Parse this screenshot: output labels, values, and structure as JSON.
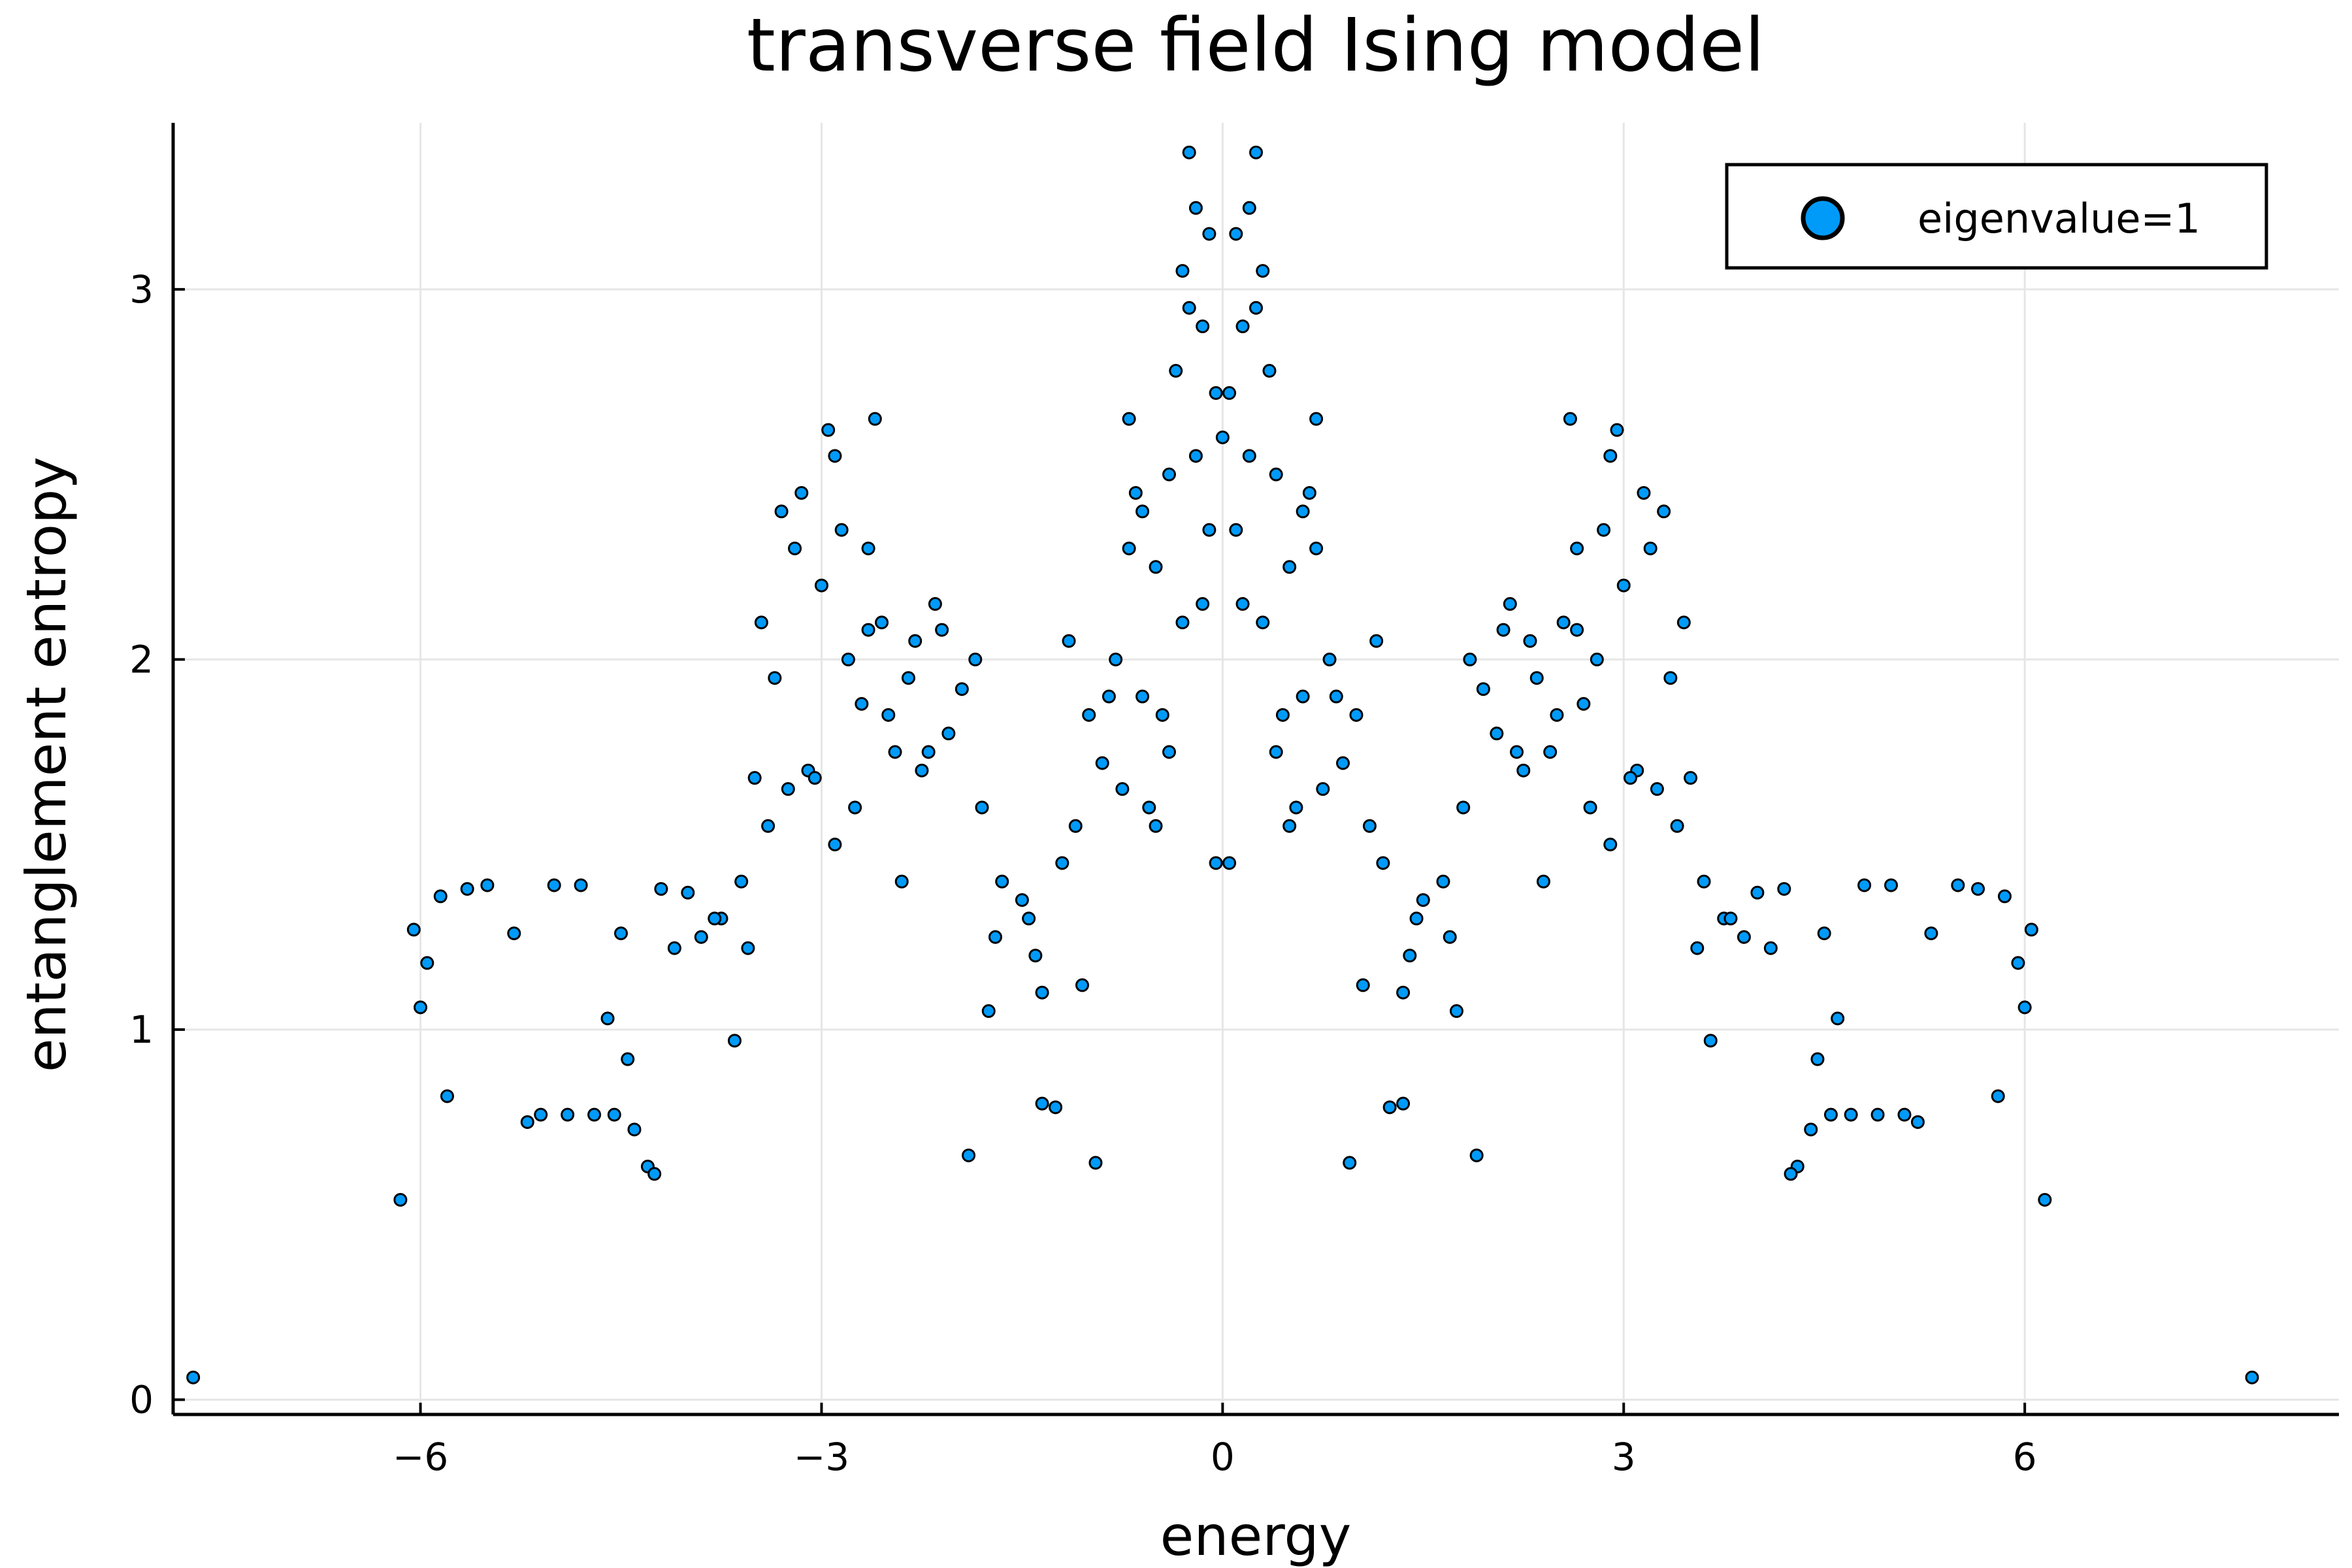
{
  "chart_data": {
    "type": "scatter",
    "title": "transverse field Ising model",
    "xlabel": "energy",
    "ylabel": "entanglement entropy",
    "xlim": [
      -7.85,
      8.35
    ],
    "ylim": [
      -0.04,
      3.45
    ],
    "xticks": [
      -6,
      -3,
      0,
      3,
      6
    ],
    "xtick_labels": [
      "−6",
      "−3",
      "0",
      "3",
      "6"
    ],
    "yticks": [
      0,
      1,
      2,
      3
    ],
    "ytick_labels": [
      "0",
      "1",
      "2",
      "3"
    ],
    "grid": true,
    "legend": "top-right",
    "colors": {
      "marker": "#009AF9",
      "marker_edge": "#000000",
      "grid": "#e6e6e6"
    },
    "series": [
      {
        "name": "eigenvalue=1",
        "x": [
          -7.7,
          7.7,
          -6.15,
          6.15,
          -6.05,
          6.05,
          -6.0,
          6.0,
          -5.95,
          5.95,
          -5.8,
          5.8,
          -5.2,
          5.2,
          -5.1,
          5.1,
          -4.9,
          4.9,
          -4.7,
          4.7,
          -4.55,
          4.55,
          -4.4,
          4.4,
          -4.3,
          4.3,
          -4.25,
          4.25,
          -4.2,
          4.2,
          -4.5,
          4.5,
          -4.6,
          4.6,
          -4.8,
          4.8,
          -5.0,
          5.0,
          -5.3,
          5.3,
          -5.5,
          5.5,
          -5.65,
          5.65,
          -5.85,
          5.85,
          -4.45,
          4.45,
          -1.9,
          1.9,
          -1.35,
          1.35,
          -1.25,
          1.25,
          -0.95,
          0.95,
          -3.5,
          3.5,
          -3.35,
          3.35,
          -3.2,
          3.2,
          -2.9,
          2.9,
          -2.6,
          2.6,
          -2.3,
          2.3,
          -3.4,
          3.4,
          -3.1,
          3.1,
          -2.7,
          2.7,
          -2.2,
          2.2,
          -1.8,
          1.8,
          -1.5,
          1.5,
          -1.2,
          1.2,
          -0.9,
          0.9,
          -0.6,
          0.6,
          -0.3,
          0.3,
          -0.1,
          0.1,
          -3.3,
          3.3,
          -3.0,
          3.0,
          -2.8,
          2.8,
          -2.5,
          2.5,
          -2.1,
          2.1,
          -1.7,
          1.7,
          -1.4,
          1.4,
          -1.1,
          1.1,
          -0.8,
          0.8,
          -0.5,
          0.5,
          -0.2,
          0.2,
          0.0,
          -3.45,
          3.45,
          -3.15,
          3.15,
          -2.95,
          2.95,
          -2.65,
          2.65,
          -2.35,
          2.35,
          -2.05,
          2.05,
          -1.75,
          1.75,
          -1.45,
          1.45,
          -1.05,
          1.05,
          -0.75,
          0.75,
          -0.45,
          0.45,
          -0.15,
          0.15,
          -3.25,
          3.25,
          -2.85,
          2.85,
          -2.55,
          2.55,
          -2.25,
          2.25,
          -1.95,
          1.95,
          -1.65,
          1.65,
          -1.35,
          1.35,
          -1.0,
          1.0,
          -0.7,
          0.7,
          -0.4,
          0.4,
          -2.75,
          2.75,
          -2.45,
          2.45,
          -2.15,
          2.15,
          -1.85,
          1.85,
          -0.65,
          0.65,
          -0.35,
          0.35,
          -0.25,
          0.25,
          -0.05,
          0.05,
          -3.6,
          3.6,
          -3.75,
          3.75,
          -3.9,
          3.9,
          -4.0,
          4.0,
          -4.1,
          4.1,
          -3.55,
          3.55,
          -3.65,
          3.65,
          -3.8,
          3.8,
          -0.55,
          0.55,
          -0.85,
          0.85,
          -1.15,
          1.15,
          -0.3,
          0.3,
          -0.2,
          0.2,
          -0.1,
          0.1,
          -0.25,
          0.25,
          -0.15,
          0.15,
          -0.05,
          0.05,
          -2.65,
          2.65,
          -2.9,
          2.9,
          -3.05,
          3.05,
          -2.4,
          2.4,
          -0.5,
          0.5,
          -0.4,
          0.4,
          -0.6,
          0.6,
          -0.7,
          0.7
        ],
        "y": [
          0.06,
          0.06,
          0.54,
          0.54,
          1.27,
          1.27,
          1.06,
          1.06,
          1.18,
          1.18,
          0.82,
          0.82,
          0.75,
          0.75,
          0.77,
          0.77,
          0.77,
          0.77,
          0.77,
          0.77,
          0.77,
          0.77,
          0.73,
          0.73,
          0.63,
          0.63,
          0.61,
          0.61,
          1.38,
          1.38,
          1.26,
          1.26,
          1.03,
          1.03,
          1.39,
          1.39,
          1.39,
          1.39,
          1.26,
          1.26,
          1.39,
          1.39,
          1.38,
          1.38,
          1.36,
          1.36,
          0.92,
          0.92,
          0.66,
          0.66,
          0.8,
          0.8,
          0.79,
          0.79,
          0.64,
          0.64,
          1.68,
          1.68,
          1.95,
          1.95,
          2.3,
          2.3,
          2.55,
          2.55,
          2.65,
          2.65,
          2.05,
          2.05,
          1.55,
          1.55,
          1.7,
          1.7,
          1.88,
          1.88,
          1.75,
          1.75,
          1.6,
          1.6,
          1.35,
          1.35,
          1.45,
          1.45,
          1.72,
          1.72,
          1.9,
          1.9,
          2.1,
          2.1,
          2.35,
          2.35,
          2.4,
          2.4,
          2.2,
          2.2,
          2.0,
          2.0,
          1.85,
          1.85,
          2.08,
          2.08,
          1.25,
          1.25,
          1.2,
          1.2,
          1.55,
          1.55,
          2.0,
          2.0,
          2.25,
          2.25,
          2.55,
          2.55,
          2.6,
          2.1,
          2.1,
          2.45,
          2.45,
          2.62,
          2.62,
          2.3,
          2.3,
          1.95,
          1.95,
          1.8,
          1.8,
          1.05,
          1.05,
          1.3,
          1.3,
          1.12,
          1.12,
          1.65,
          1.65,
          1.85,
          1.85,
          2.15,
          2.15,
          1.65,
          1.65,
          2.35,
          2.35,
          2.1,
          2.1,
          1.7,
          1.7,
          1.92,
          1.92,
          1.4,
          1.4,
          1.1,
          1.1,
          1.85,
          1.85,
          2.3,
          2.3,
          2.5,
          2.5,
          1.6,
          1.6,
          1.75,
          1.75,
          2.15,
          2.15,
          2.0,
          2.0,
          2.45,
          2.45,
          2.78,
          2.78,
          2.95,
          2.95,
          2.72,
          2.72,
          1.4,
          1.4,
          1.3,
          1.3,
          1.25,
          1.25,
          1.37,
          1.37,
          1.22,
          1.22,
          1.22,
          1.22,
          0.97,
          0.97,
          1.3,
          1.3,
          1.6,
          1.6,
          1.9,
          1.9,
          2.05,
          2.05,
          3.05,
          3.05,
          3.22,
          3.22,
          3.15,
          3.15,
          3.37,
          3.37,
          2.9,
          2.9,
          1.45,
          1.45,
          2.08,
          2.08,
          1.5,
          1.5,
          1.68,
          1.68,
          1.4,
          1.4,
          1.55,
          1.55,
          1.75,
          1.75,
          2.4,
          2.4,
          2.65,
          2.65
        ]
      }
    ]
  }
}
